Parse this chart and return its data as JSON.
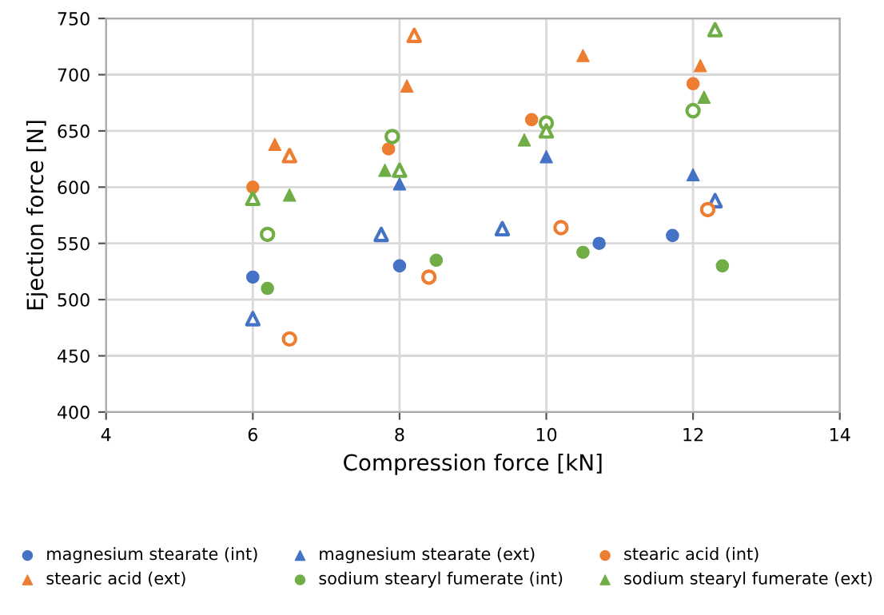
{
  "chart_data": {
    "type": "scatter",
    "xlabel": "Compression force [kN]",
    "ylabel": "Ejection force [N]",
    "xlim": [
      4,
      14
    ],
    "xticks": [
      4,
      6,
      8,
      10,
      12,
      14
    ],
    "ylim": [
      400,
      750
    ],
    "yticks": [
      400,
      450,
      500,
      550,
      600,
      650,
      700,
      750
    ],
    "grid": true,
    "legend": "bottom",
    "series": [
      {
        "name": "magnesium stearate (int)",
        "color": "#4472c4",
        "marker": "circle",
        "x": [
          6,
          8,
          10.72,
          11.72
        ],
        "values": [
          520,
          530,
          550,
          557
        ]
      },
      {
        "name": "magnesium stearate (ext)",
        "color": "#4472c4",
        "marker": "triangle",
        "x": [
          8,
          10,
          12
        ],
        "values": [
          603,
          627,
          611
        ]
      },
      {
        "name": "stearic acid (int)",
        "color": "#ed7d31",
        "marker": "circle",
        "x": [
          6,
          7.85,
          9.8,
          12
        ],
        "values": [
          600,
          634,
          660,
          692
        ]
      },
      {
        "name": "stearic acid (ext)",
        "color": "#ed7d31",
        "marker": "triangle",
        "x": [
          6.3,
          8.1,
          10.5,
          12.1
        ],
        "values": [
          638,
          690,
          717,
          708
        ]
      },
      {
        "name": "sodium stearyl fumerate (int)",
        "color": "#70ad47",
        "marker": "circle",
        "x": [
          6.2,
          8.5,
          10.5,
          12.4
        ],
        "values": [
          510,
          535,
          542,
          530
        ]
      },
      {
        "name": "sodium stearyl fumerate (ext)",
        "color": "#70ad47",
        "marker": "triangle",
        "x": [
          6.5,
          7.8,
          9.7,
          12.15
        ],
        "values": [
          593,
          615,
          642,
          680
        ]
      },
      {
        "color": "#4472c4",
        "marker": "triangle",
        "x": [
          6,
          7.75,
          9.4,
          12.3
        ],
        "values": [
          483,
          558,
          563,
          588
        ]
      },
      {
        "color": "#ed7d31",
        "marker": "circle",
        "x": [
          6.5,
          8.4,
          10.2,
          12.2
        ],
        "values": [
          465,
          520,
          564,
          580
        ]
      },
      {
        "color": "#ed7d31",
        "marker": "triangle",
        "x": [
          6.5,
          8.2
        ],
        "values": [
          628,
          735
        ]
      },
      {
        "color": "#70ad47",
        "marker": "circle",
        "x": [
          6.2,
          7.9,
          10,
          12
        ],
        "values": [
          558,
          645,
          657,
          668
        ]
      },
      {
        "color": "#70ad47",
        "marker": "triangle",
        "x": [
          6,
          8,
          10,
          12.3
        ],
        "values": [
          590,
          615,
          650,
          740
        ]
      }
    ]
  }
}
